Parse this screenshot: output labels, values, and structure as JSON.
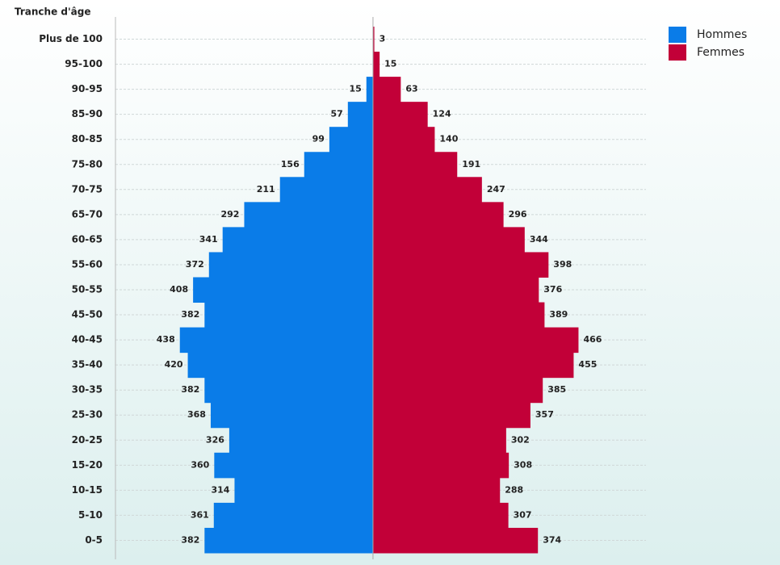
{
  "chart_data": {
    "type": "pyramid",
    "y_axis_label": "Tranche d'âge",
    "categories": [
      "Plus de 100",
      "95-100",
      "90-95",
      "85-90",
      "80-85",
      "75-80",
      "70-75",
      "65-70",
      "60-65",
      "55-60",
      "50-55",
      "45-50",
      "40-45",
      "35-40",
      "30-35",
      "25-30",
      "20-25",
      "15-20",
      "10-15",
      "5-10",
      "0-5"
    ],
    "series": [
      {
        "name": "Hommes",
        "color": "#0a7ce8",
        "side": "left",
        "values": [
          null,
          null,
          15,
          57,
          99,
          156,
          211,
          292,
          341,
          372,
          408,
          382,
          438,
          420,
          382,
          368,
          326,
          360,
          314,
          361,
          382
        ]
      },
      {
        "name": "Femmes",
        "color": "#c20038",
        "side": "right",
        "values": [
          3,
          15,
          63,
          124,
          140,
          191,
          247,
          296,
          344,
          398,
          376,
          389,
          466,
          455,
          385,
          357,
          302,
          308,
          288,
          307,
          374
        ]
      }
    ],
    "xlim": [
      -584,
      619
    ],
    "grid": true,
    "legend": "top-right"
  }
}
